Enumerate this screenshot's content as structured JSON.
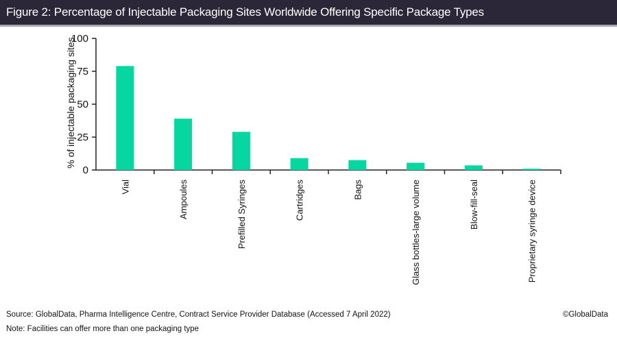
{
  "header": {
    "title": "Figure 2: Percentage of Injectable Packaging Sites Worldwide Offering Specific Package Types"
  },
  "chart_data": {
    "type": "bar",
    "title": "Figure 2: Percentage of Injectable Packaging Sites Worldwide Offering Specific Package Types",
    "xlabel": "",
    "ylabel": "% of injectable packaging sites",
    "ylim": [
      0,
      100
    ],
    "yticks": [
      0,
      25,
      50,
      75,
      100
    ],
    "grid": false,
    "legend": "none",
    "bar_color": "#06d6a0",
    "categories": [
      "Vial",
      "Ampoules",
      "Prefilled Syringes",
      "Cartridges",
      "Bags",
      "Glass bottles-large volume",
      "Blow-fill-seal",
      "Proprietary syringe device"
    ],
    "values": [
      79,
      39,
      29,
      9,
      7.5,
      5.5,
      3.5,
      1
    ]
  },
  "footer": {
    "source": "Source: GlobalData, Pharma Intelligence Centre, Contract Service Provider Database (Accessed 7 April 2022)",
    "note": "Note: Facilities can offer more than one packaging type",
    "copyright": "©GlobalData"
  }
}
